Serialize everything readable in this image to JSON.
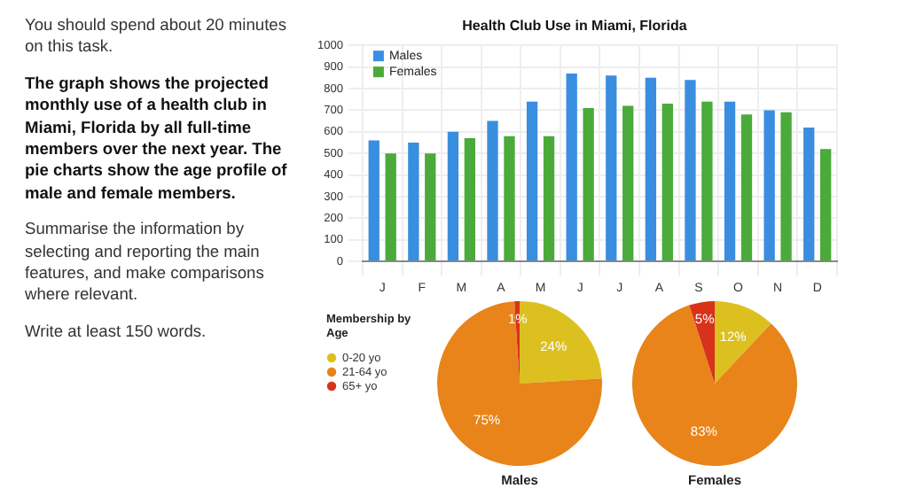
{
  "chart_data": [
    {
      "type": "bar",
      "title": "Health Club Use in Miami, Florida",
      "categories": [
        "J",
        "F",
        "M",
        "A",
        "M",
        "J",
        "J",
        "A",
        "S",
        "O",
        "N",
        "D"
      ],
      "series": [
        {
          "name": "Males",
          "color": "#3a8ee0",
          "values": [
            560,
            550,
            600,
            650,
            740,
            870,
            860,
            850,
            840,
            740,
            700,
            620
          ]
        },
        {
          "name": "Females",
          "color": "#4aaa3a",
          "values": [
            500,
            500,
            570,
            580,
            580,
            710,
            720,
            730,
            740,
            680,
            690,
            520
          ]
        }
      ],
      "ylim": [
        0,
        1000
      ],
      "yticks": [
        0,
        100,
        200,
        300,
        400,
        500,
        600,
        700,
        800,
        900,
        1000
      ],
      "grid": true,
      "legend": "top left",
      "annotations": [
        "You should spend about 20 minutes on this task.",
        "The graph shows the projected monthly use of a health club in Miami, Florida by all full-time members over the next year. The pie charts show the age profile of male and female members.",
        "Summarise the information by selecting and reporting the main features, and make comparisons where relevant.",
        "Write at least 150 words."
      ]
    },
    {
      "type": "pie",
      "title": "Males",
      "legend_title": "Membership by Age",
      "categories": [
        "0-20 yo",
        "21-64 yo",
        "65+ yo"
      ],
      "values": [
        24,
        75,
        1
      ],
      "colors": [
        "#dcc020",
        "#e8841a",
        "#d8321a"
      ],
      "value_labels": [
        "24%",
        "75%",
        "1%"
      ],
      "legend": "left"
    },
    {
      "type": "pie",
      "title": "Females",
      "categories": [
        null,
        null,
        null
      ],
      "values": [
        12,
        83,
        5
      ],
      "colors": [
        "#dcc020",
        "#e8841a",
        "#d8321a"
      ],
      "value_labels": [
        "12%",
        "83%",
        "5%"
      ]
    }
  ]
}
